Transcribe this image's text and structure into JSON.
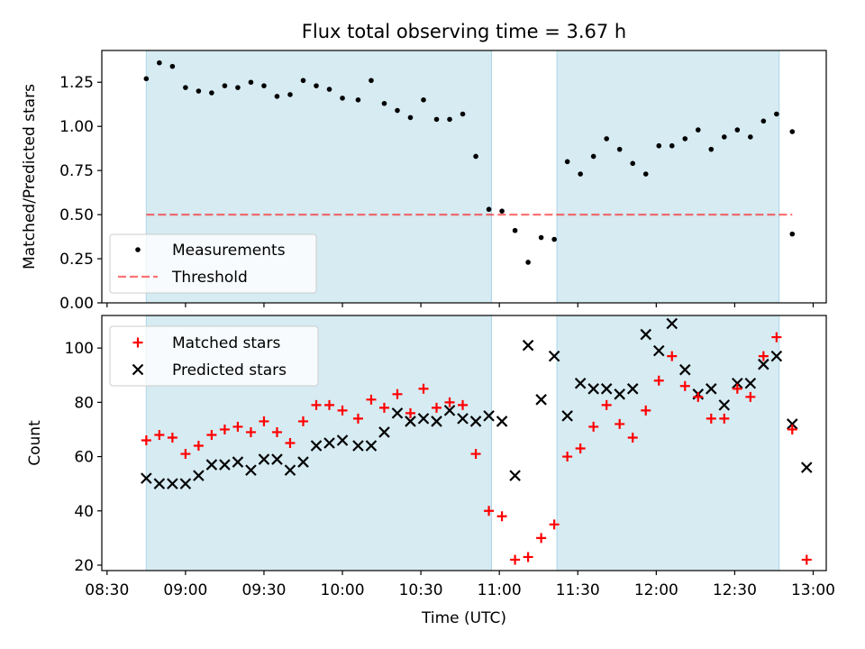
{
  "title": "Flux total observing time = 3.67 h",
  "xlabel": "Time (UTC)",
  "colors": {
    "shade": "#add8e6",
    "matched": "#ff0000",
    "predicted": "#000000",
    "threshold": "#ff0000",
    "measurement": "#000000"
  },
  "chart_data": [
    {
      "type": "scatter",
      "ylabel": "Matched/Predicted stars",
      "ylim": [
        0,
        1.43
      ],
      "yticks": [
        0.0,
        0.25,
        0.5,
        0.75,
        1.0,
        1.25
      ],
      "ytick_labels": [
        "0.00",
        "0.25",
        "0.50",
        "0.75",
        "1.00",
        "1.25"
      ],
      "xlim": [
        "08:28",
        "13:05"
      ],
      "legend": {
        "placement": "lower-left",
        "entries": [
          "Measurements",
          "Threshold"
        ]
      },
      "shaded_intervals": [
        [
          "08:45",
          "10:57"
        ],
        [
          "11:22",
          "12:47"
        ]
      ],
      "threshold": {
        "name": "Threshold",
        "value": 0.5,
        "x": [
          "08:45",
          "12:52"
        ]
      },
      "series": [
        {
          "name": "Measurements",
          "marker": "dot",
          "x": [
            "08:45",
            "08:50",
            "08:55",
            "09:00",
            "09:05",
            "09:10",
            "09:15",
            "09:20",
            "09:25",
            "09:30",
            "09:35",
            "09:40",
            "09:45",
            "09:50",
            "09:55",
            "10:00",
            "10:06",
            "10:11",
            "10:16",
            "10:21",
            "10:26",
            "10:31",
            "10:36",
            "10:41",
            "10:46",
            "10:51",
            "10:56",
            "11:01",
            "11:06",
            "11:11",
            "11:16",
            "11:21",
            "11:26",
            "11:31",
            "11:36",
            "11:41",
            "11:46",
            "11:51",
            "11:56",
            "12:01",
            "12:06",
            "12:11",
            "12:16",
            "12:21",
            "12:26",
            "12:31",
            "12:36",
            "12:41",
            "12:46",
            "12:52"
          ],
          "values": [
            1.27,
            1.36,
            1.34,
            1.22,
            1.2,
            1.19,
            1.23,
            1.22,
            1.25,
            1.23,
            1.17,
            1.18,
            1.26,
            1.23,
            1.21,
            1.16,
            1.15,
            1.26,
            1.13,
            1.09,
            1.05,
            1.15,
            1.04,
            1.04,
            1.07,
            0.83,
            0.53,
            0.52,
            0.41,
            0.23,
            0.37,
            0.36,
            0.8,
            0.73,
            0.83,
            0.93,
            0.87,
            0.79,
            0.73,
            0.89,
            0.89,
            0.93,
            0.98,
            0.87,
            0.94,
            0.98,
            0.94,
            1.03,
            1.07,
            0.97
          ]
        }
      ]
    },
    {
      "type": "scatter",
      "ylabel": "Count",
      "ylim": [
        18,
        112
      ],
      "yticks": [
        20,
        40,
        60,
        80,
        100
      ],
      "ytick_labels": [
        "20",
        "40",
        "60",
        "80",
        "100"
      ],
      "xlim": [
        "08:28",
        "13:05"
      ],
      "xticks": [
        "08:30",
        "09:00",
        "09:30",
        "10:00",
        "10:30",
        "11:00",
        "11:30",
        "12:00",
        "12:30",
        "13:00"
      ],
      "xtick_labels": [
        "08:30",
        "09:00",
        "09:30",
        "10:00",
        "10:30",
        "11:00",
        "11:30",
        "12:00",
        "12:30",
        "13:00"
      ],
      "legend": {
        "placement": "top-left",
        "entries": [
          "Matched stars",
          "Predicted stars"
        ]
      },
      "shaded_intervals": [
        [
          "08:45",
          "10:57"
        ],
        [
          "11:22",
          "12:47"
        ]
      ],
      "series": [
        {
          "name": "Matched stars",
          "marker": "plus",
          "x": [
            "08:45",
            "08:50",
            "08:55",
            "09:00",
            "09:05",
            "09:10",
            "09:15",
            "09:20",
            "09:25",
            "09:30",
            "09:35",
            "09:40",
            "09:45",
            "09:50",
            "09:55",
            "10:00",
            "10:06",
            "10:11",
            "10:16",
            "10:21",
            "10:26",
            "10:31",
            "10:36",
            "10:41",
            "10:46",
            "10:51",
            "10:56",
            "11:01",
            "11:06",
            "11:11",
            "11:16",
            "11:21",
            "11:26",
            "11:31",
            "11:36",
            "11:41",
            "11:46",
            "11:51",
            "11:56",
            "12:01",
            "12:06",
            "12:11",
            "12:16",
            "12:21",
            "12:26",
            "12:31",
            "12:36",
            "12:41",
            "12:46",
            "12:52"
          ],
          "values": [
            66,
            68,
            67,
            61,
            64,
            68,
            70,
            71,
            69,
            73,
            69,
            65,
            73,
            79,
            79,
            77,
            74,
            81,
            78,
            83,
            76,
            85,
            78,
            80,
            79,
            61,
            40,
            38,
            22,
            23,
            30,
            35,
            60,
            63,
            71,
            79,
            72,
            67,
            77,
            88,
            97,
            86,
            82,
            74,
            74,
            85,
            82,
            97,
            104,
            70
          ]
        },
        {
          "name": "Predicted stars",
          "marker": "x",
          "x": [
            "08:45",
            "08:50",
            "08:55",
            "09:00",
            "09:05",
            "09:10",
            "09:15",
            "09:20",
            "09:25",
            "09:30",
            "09:35",
            "09:40",
            "09:45",
            "09:50",
            "09:55",
            "10:00",
            "10:06",
            "10:11",
            "10:16",
            "10:21",
            "10:26",
            "10:31",
            "10:36",
            "10:41",
            "10:46",
            "10:51",
            "10:56",
            "11:01",
            "11:06",
            "11:11",
            "11:16",
            "11:21",
            "11:26",
            "11:31",
            "11:36",
            "11:41",
            "11:46",
            "11:51",
            "11:56",
            "12:01",
            "12:06",
            "12:11",
            "12:16",
            "12:21",
            "12:26",
            "12:31",
            "12:36",
            "12:41",
            "12:46",
            "12:52"
          ],
          "values": [
            52,
            50,
            50,
            50,
            53,
            57,
            57,
            58,
            55,
            59,
            59,
            55,
            58,
            64,
            65,
            66,
            64,
            64,
            69,
            76,
            73,
            74,
            73,
            77,
            74,
            73,
            75,
            73,
            53,
            101,
            81,
            97,
            75,
            87,
            85,
            85,
            83,
            85,
            105,
            99,
            109,
            92,
            83,
            85,
            79,
            87,
            87,
            94,
            97,
            72
          ]
        }
      ],
      "extra_points": {
        "matched": {
          "x": [
            "12:52"
          ],
          "values": [
            22
          ]
        },
        "predicted": {
          "x": [
            "12:52"
          ],
          "values": [
            56
          ]
        }
      }
    }
  ]
}
